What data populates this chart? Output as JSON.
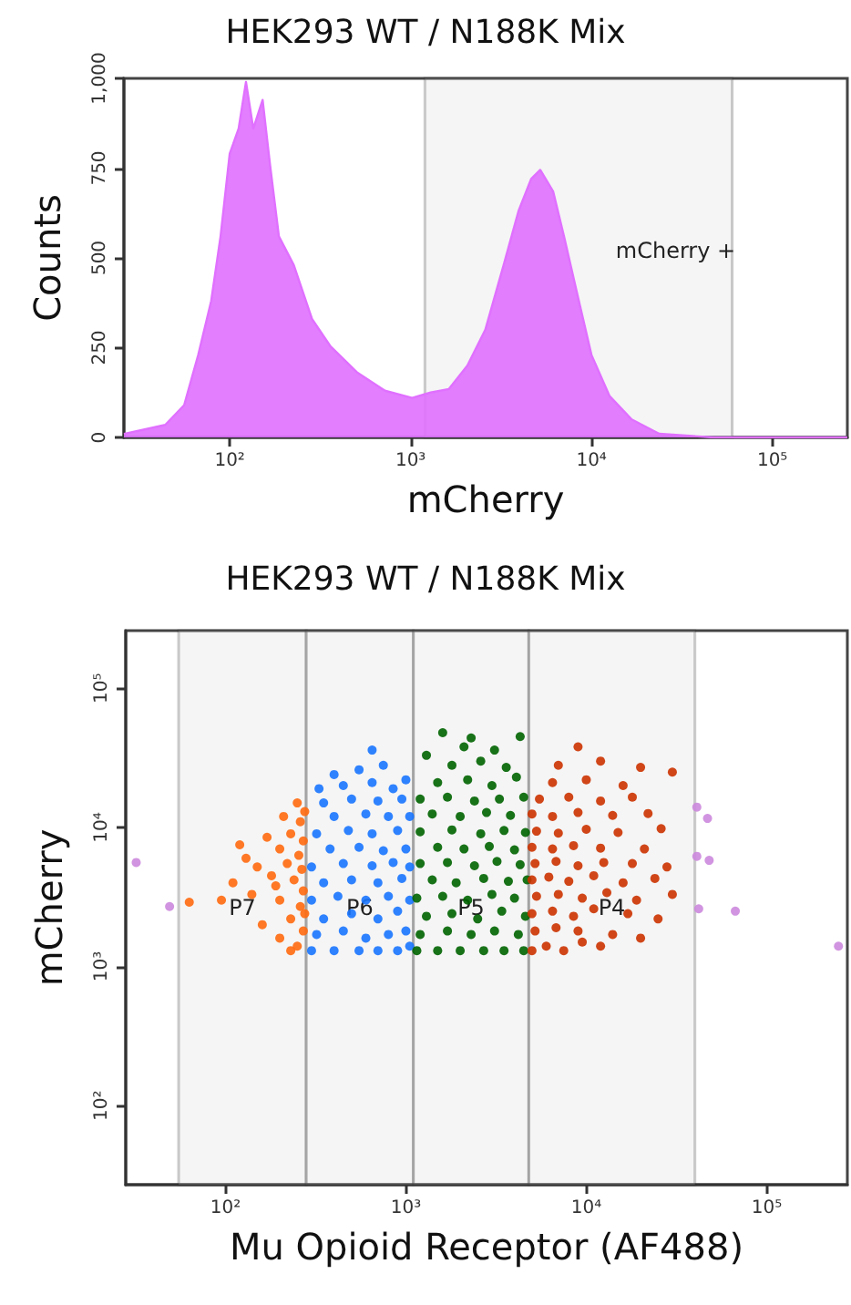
{
  "chart_data": [
    {
      "type": "area",
      "title": "HEK293 WT / N188K Mix",
      "xlabel": "mCherry",
      "ylabel": "Counts",
      "log": "x",
      "grid": false,
      "marker": "none",
      "color": "#e070ff",
      "x": [
        26,
        44,
        56,
        67,
        79,
        89,
        100,
        112,
        123,
        135,
        152,
        167,
        187,
        226,
        285,
        359,
        509,
        722,
        1020,
        1290,
        1630,
        2060,
        2590,
        3270,
        3950,
        4640,
        5210,
        6140,
        7050,
        8300,
        10000,
        12600,
        16700,
        23700,
        47500,
        260000
      ],
      "values": [
        10,
        35,
        90,
        230,
        380,
        560,
        790,
        860,
        990,
        860,
        940,
        760,
        560,
        480,
        330,
        255,
        180,
        130,
        110,
        125,
        135,
        200,
        300,
        480,
        630,
        720,
        745,
        685,
        560,
        405,
        230,
        115,
        50,
        10,
        0,
        0
      ],
      "xlim": [
        26,
        260000
      ],
      "ylim": [
        0,
        1000
      ],
      "xticks": [
        {
          "value": 100,
          "label": "10²"
        },
        {
          "value": 1000,
          "label": "10³"
        },
        {
          "value": 10000,
          "label": "10⁴"
        },
        {
          "value": 100000,
          "label": "10⁵"
        }
      ],
      "yticks": [
        0,
        250,
        500,
        750,
        {
          "value": 1000,
          "label": "1,000"
        }
      ],
      "bands": [
        {
          "axis": "x",
          "from": 1200,
          "to": 60000,
          "label": "mCherry +"
        }
      ]
    },
    {
      "type": "scatter",
      "title": "HEK293 WT / N188K Mix",
      "xlabel": "Mu Opioid Receptor (AF488)",
      "ylabel": "mCherry",
      "log": "xy",
      "grid": false,
      "marker": "circle",
      "xlim": [
        28,
        280000
      ],
      "ylim": [
        27,
        260000
      ],
      "xticks": [
        {
          "value": 100,
          "label": "10²"
        },
        {
          "value": 1000,
          "label": "10³"
        },
        {
          "value": 10000,
          "label": "10⁴"
        },
        {
          "value": 100000,
          "label": "10⁵"
        }
      ],
      "yticks": [
        {
          "value": 100,
          "label": "10²"
        },
        {
          "value": 1000,
          "label": "10³"
        },
        {
          "value": 10000,
          "label": "10⁴"
        },
        {
          "value": 100000,
          "label": "10⁵"
        }
      ],
      "bands": [
        {
          "axis": "x",
          "from": 55,
          "to": 280,
          "label": "P7"
        },
        {
          "axis": "x",
          "from": 280,
          "to": 1100,
          "label": "P6"
        },
        {
          "axis": "x",
          "from": 1100,
          "to": 4800,
          "label": "P5"
        },
        {
          "axis": "x",
          "from": 4800,
          "to": 40000,
          "label": "P4"
        }
      ],
      "series": [
        {
          "color": "#ff6a10",
          "x": [
            250,
            270,
            230,
            260,
            200,
            270,
            240,
            180,
            265,
            220,
            150,
            255,
            200,
            130,
            270,
            230,
            170,
            260,
            210,
            250,
            110,
            95,
            160,
            200,
            140,
            120,
            190,
            230,
            275,
            275,
            63
          ],
          "values": [
            1400,
            1800,
            2200,
            2700,
            3000,
            3500,
            4200,
            4500,
            5000,
            5500,
            5200,
            6300,
            7000,
            6000,
            8000,
            9000,
            8500,
            11000,
            12000,
            15000,
            4000,
            3000,
            2000,
            1600,
            3300,
            7500,
            3800,
            1300,
            2400,
            13000,
            2900
          ]
        },
        {
          "color": "#1a75ff",
          "x": [
            300,
            400,
            550,
            700,
            900,
            1050,
            320,
            450,
            600,
            800,
            1000,
            350,
            500,
            700,
            900,
            300,
            420,
            600,
            800,
            1050,
            350,
            500,
            700,
            950,
            300,
            450,
            650,
            850,
            1050,
            380,
            550,
            750,
            1000,
            320,
            480,
            650,
            900,
            400,
            600,
            800,
            1050,
            350,
            500,
            700,
            950,
            450,
            650,
            850,
            550,
            750,
            650,
            400,
            330,
            1000
          ],
          "values": [
            1300,
            1300,
            1300,
            1300,
            1300,
            1400,
            1700,
            1800,
            1600,
            1700,
            1800,
            2200,
            2400,
            2200,
            2500,
            3000,
            3200,
            3000,
            3200,
            3000,
            4000,
            4200,
            4000,
            4300,
            5200,
            5500,
            5300,
            5600,
            5200,
            7000,
            7200,
            6800,
            7000,
            9000,
            9500,
            9000,
            9500,
            12000,
            12500,
            12000,
            12000,
            15000,
            16000,
            15500,
            16000,
            20000,
            21000,
            19000,
            26000,
            28000,
            36000,
            24000,
            19000,
            22000
          ]
        },
        {
          "color": "#006400",
          "x": [
            1150,
            1500,
            2000,
            2700,
            3500,
            4500,
            1200,
            1700,
            2300,
            3100,
            4200,
            1300,
            1800,
            2500,
            3400,
            4600,
            1150,
            1600,
            2200,
            3000,
            4000,
            1400,
            1900,
            2700,
            3700,
            4700,
            1200,
            1700,
            2400,
            3200,
            4300,
            1500,
            2100,
            2900,
            4000,
            1200,
            1800,
            2600,
            3500,
            4600,
            1400,
            2000,
            2800,
            3800,
            1200,
            1700,
            2400,
            3300,
            4500,
            1500,
            2200,
            3000,
            4100,
            1800,
            2600,
            3600,
            1300,
            2100,
            3100,
            4300,
            1600,
            2300
          ],
          "values": [
            1300,
            1300,
            1300,
            1300,
            1300,
            1300,
            1700,
            1800,
            1700,
            1800,
            1700,
            2300,
            2400,
            2200,
            2500,
            2300,
            3100,
            3200,
            3000,
            3300,
            3100,
            4200,
            4000,
            4300,
            4100,
            4200,
            5500,
            5600,
            5300,
            5700,
            5400,
            7200,
            7000,
            7300,
            6900,
            9300,
            9600,
            9000,
            9500,
            9200,
            12500,
            12000,
            12800,
            12200,
            16000,
            16500,
            15500,
            16000,
            16500,
            21000,
            22000,
            20000,
            23000,
            28000,
            30000,
            27000,
            33000,
            38000,
            36000,
            45000,
            48000,
            44000
          ]
        },
        {
          "color": "#cc3300",
          "x": [
            5000,
            6000,
            7500,
            9500,
            12000,
            5200,
            6800,
            9000,
            14000,
            20000,
            5000,
            6500,
            8500,
            11000,
            17000,
            25000,
            5300,
            7000,
            9500,
            13000,
            19000,
            30000,
            5000,
            6200,
            8000,
            11000,
            16000,
            24000,
            5200,
            6800,
            9000,
            12500,
            18000,
            28000,
            5000,
            6500,
            8500,
            12000,
            21000,
            5300,
            7000,
            10000,
            15000,
            26000,
            5000,
            6500,
            9000,
            14000,
            22000,
            5500,
            8000,
            12000,
            18000,
            6500,
            10000,
            16000,
            7000,
            12000,
            9000,
            20000,
            30000
          ],
          "values": [
            1300,
            1400,
            1300,
            1500,
            1400,
            1800,
            1900,
            1800,
            1700,
            1600,
            2400,
            2500,
            2300,
            2600,
            2400,
            2200,
            3200,
            3300,
            3100,
            3400,
            3000,
            3300,
            4200,
            4400,
            4100,
            4500,
            4000,
            4300,
            5500,
            5700,
            5300,
            5600,
            5500,
            5200,
            7200,
            7000,
            7400,
            7100,
            7000,
            9400,
            9100,
            9700,
            9200,
            9800,
            12500,
            12000,
            12800,
            12200,
            12600,
            16000,
            16500,
            15500,
            16500,
            21000,
            22000,
            20000,
            28000,
            30000,
            38000,
            27000,
            25000
          ]
        },
        {
          "color": "#cc88dd",
          "x": [
            32,
            49,
            41000,
            47000,
            41000,
            48000,
            42000,
            67000,
            250000
          ],
          "values": [
            5600,
            2700,
            14000,
            11600,
            6200,
            5800,
            2600,
            2500,
            1400
          ]
        }
      ]
    }
  ]
}
